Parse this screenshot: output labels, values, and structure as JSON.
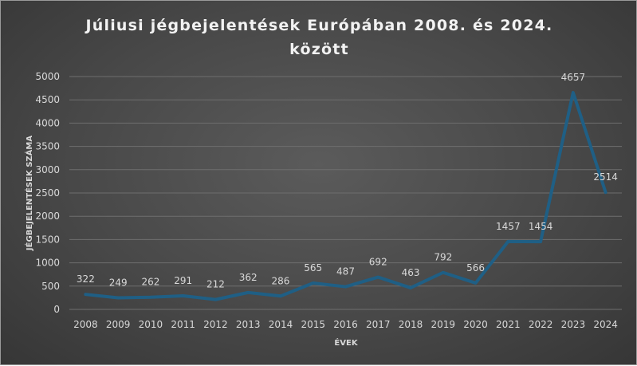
{
  "chart_data": {
    "type": "line",
    "title_line1": "Júliusi jégbejelentések Európában 2008. és 2024.",
    "title_line2": "között",
    "xlabel": "ÉVEK",
    "ylabel": "JÉGBEJELENTÉSEK SZÁMA",
    "ylim": [
      0,
      5000
    ],
    "yticks": [
      "0",
      "500",
      "1000",
      "1500",
      "2000",
      "2500",
      "3000",
      "3500",
      "4000",
      "4500",
      "5000"
    ],
    "categories": [
      "2008",
      "2009",
      "2010",
      "2011",
      "2012",
      "2013",
      "2014",
      "2015",
      "2016",
      "2017",
      "2018",
      "2019",
      "2020",
      "2021",
      "2022",
      "2023",
      "2024"
    ],
    "values": [
      322,
      249,
      262,
      291,
      212,
      362,
      286,
      565,
      487,
      692,
      463,
      792,
      566,
      1457,
      1454,
      4657,
      2514
    ],
    "data_labels": [
      "322",
      "249",
      "262",
      "291",
      "212",
      "362",
      "286",
      "565",
      "487",
      "692",
      "463",
      "792",
      "566",
      "1457",
      "1454",
      "4657",
      "2514"
    ],
    "grid": true,
    "legend": "none",
    "colors": {
      "line": "#1f5f85",
      "text": "#d9d9d9",
      "title": "#f2f2f2",
      "grid": "#6e6e6e"
    }
  }
}
